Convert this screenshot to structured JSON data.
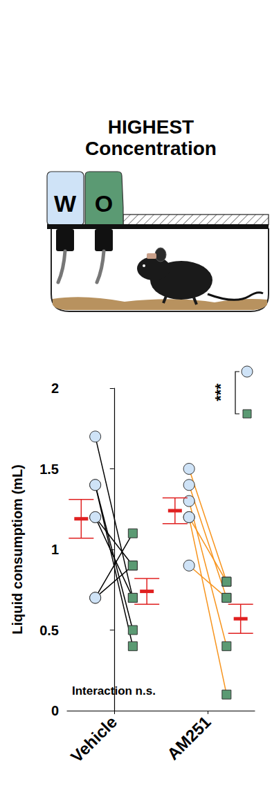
{
  "chart_data": {
    "type": "scatter",
    "title": "HIGHEST\nConcentration",
    "y_label": "Liquid consumptiom (mL)",
    "categories": [
      "Vehicle",
      "AM251"
    ],
    "ylim": [
      0,
      2
    ],
    "yticks": [
      0,
      0.5,
      1,
      1.5,
      2
    ],
    "grid": false,
    "series": [
      {
        "name": "W",
        "color": "#cfe3f7",
        "marker": "circle",
        "values": [
          [
            1.7,
            1.4,
            1.4,
            1.2,
            1.2,
            0.7,
            0.7
          ],
          [
            1.5,
            1.4,
            1.3,
            1.2,
            1.2,
            0.9
          ]
        ],
        "mean": [
          1.19,
          1.24
        ],
        "sem": [
          0.12,
          0.08
        ]
      },
      {
        "name": "O",
        "color": "#5b9a73",
        "marker": "square",
        "values": [
          [
            0.7,
            0.5,
            0.4,
            0.9,
            0.7,
            1.1,
            0.9
          ],
          [
            0.8,
            0.7,
            0.4,
            0.1,
            0.8,
            0.7
          ]
        ],
        "mean": [
          0.74,
          0.57
        ],
        "sem": [
          0.08,
          0.09
        ]
      }
    ],
    "annotations": [
      "Interaction n.s.",
      "***"
    ]
  }
}
